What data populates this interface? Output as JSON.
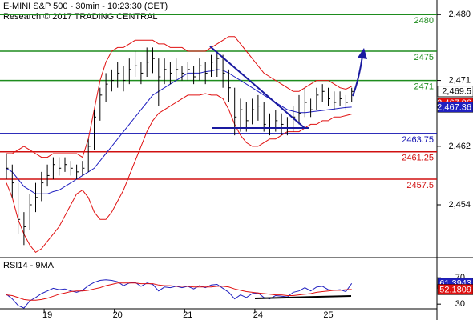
{
  "chart_data": [
    {
      "type": "ohlc",
      "title": "E-MINI S&P 500 - 30min - 10:23:30 (CET)",
      "subtitle": "Research © 2017 TRADING CENTRAL",
      "categories": [
        null,
        null,
        null,
        null,
        null,
        null,
        null,
        "19",
        null,
        null,
        null,
        null,
        null,
        null,
        null,
        null,
        null,
        null,
        null,
        "20",
        null,
        null,
        null,
        null,
        null,
        null,
        null,
        null,
        null,
        null,
        null,
        "21",
        null,
        null,
        null,
        null,
        null,
        null,
        null,
        null,
        null,
        null,
        null,
        "24",
        null,
        null,
        null,
        null,
        null,
        null,
        null,
        null,
        null,
        null,
        null,
        "25",
        null,
        null,
        null,
        null
      ],
      "high": [
        2461,
        2459.5,
        2457,
        2453,
        2455.5,
        2457,
        2458.5,
        2459.5,
        2460.5,
        2460.5,
        2460.5,
        2460,
        2459.5,
        2460,
        2463,
        2467,
        2470,
        2472,
        2472.5,
        2473.5,
        2473,
        2474,
        2475,
        2473.5,
        2475.5,
        2475.5,
        2474,
        2474,
        2473.5,
        2474,
        2473,
        2473.5,
        2473,
        2474,
        2473.5,
        2474.5,
        2475,
        2474.5,
        2472.5,
        2470,
        2468.5,
        2468,
        2468.5,
        2469,
        2468,
        2466.5,
        2467,
        2466.5,
        2466,
        2467.5,
        2469,
        2470,
        2468.5,
        2470,
        2470.5,
        2470,
        2469.5,
        2469.5,
        2469,
        2470
      ],
      "low": [
        2457.5,
        2455,
        2450,
        2448.5,
        2450.5,
        2453,
        2454.5,
        2456.5,
        2457.5,
        2458,
        2458.5,
        2458,
        2457.5,
        2458,
        2458.5,
        2461.5,
        2465.5,
        2468,
        2469.5,
        2470,
        2469.5,
        2470.5,
        2471.5,
        2470.5,
        2471.5,
        2472,
        2467.5,
        2470.5,
        2470.5,
        2471,
        2471,
        2471,
        2470.5,
        2471,
        2470.5,
        2471.5,
        2471.5,
        2470,
        2468,
        2463.5,
        2464,
        2464,
        2465,
        2465.5,
        2464,
        2463.5,
        2464,
        2463.5,
        2463.5,
        2464,
        2465,
        2466,
        2466,
        2467,
        2468,
        2467.5,
        2467,
        2467.5,
        2467,
        2468
      ],
      "close": [
        2459,
        2457,
        2452,
        2451,
        2454,
        2455,
        2457,
        2458,
        2459.5,
        2459,
        2459.5,
        2459,
        2458.5,
        2459,
        2462,
        2466,
        2469,
        2470.5,
        2471,
        2472,
        2471,
        2472.5,
        2473,
        2472,
        2473.5,
        2474,
        2471.5,
        2472.5,
        2472,
        2472.5,
        2472,
        2472.5,
        2471.5,
        2473,
        2472,
        2473.5,
        2474,
        2472,
        2470,
        2466,
        2467,
        2465.5,
        2467,
        2467.5,
        2465,
        2464.5,
        2465.5,
        2465,
        2464.5,
        2466,
        2466.5,
        2468,
        2467,
        2469,
        2469.5,
        2468.5,
        2468,
        2468.5,
        2468,
        2469.5
      ],
      "upper_band": [
        2461,
        2461,
        2461.5,
        2462,
        2461.5,
        2461,
        2460.5,
        2460.5,
        2461,
        2461,
        2461,
        2461,
        2461,
        2460.5,
        2463,
        2467,
        2471,
        2473.5,
        2475,
        2475.5,
        2475.5,
        2476,
        2476.5,
        2476.5,
        2476.5,
        2476.5,
        2476,
        2476,
        2475.5,
        2475.5,
        2475.5,
        2475,
        2475,
        2475,
        2475,
        2475.5,
        2476,
        2476.5,
        2477,
        2477,
        2476,
        2475,
        2474,
        2473,
        2472,
        2471.5,
        2471,
        2470.5,
        2470,
        2469.5,
        2469.5,
        2470,
        2470.5,
        2471,
        2471,
        2471,
        2470.5,
        2470,
        2469.8,
        2470.2
      ],
      "middle_band": [
        2459,
        2458.5,
        2457.5,
        2456.5,
        2456,
        2455.5,
        2455.5,
        2455.5,
        2455.8,
        2456,
        2456.5,
        2457,
        2457.5,
        2458,
        2458.5,
        2459,
        2460,
        2461,
        2462,
        2463,
        2464,
        2465,
        2466,
        2467,
        2468,
        2469,
        2469.5,
        2470,
        2470.5,
        2471,
        2471.5,
        2472,
        2472,
        2472,
        2472.2,
        2472.3,
        2472.5,
        2472.4,
        2472,
        2471.5,
        2471,
        2470.5,
        2470,
        2469.5,
        2469,
        2468.5,
        2468,
        2467.5,
        2467,
        2466.8,
        2466.6,
        2466.6,
        2466.7,
        2466.8,
        2466.9,
        2467,
        2467.1,
        2467.2,
        2467.3,
        2467.36
      ],
      "lower_band": [
        2457,
        2455,
        2452,
        2450,
        2448.5,
        2447.5,
        2448,
        2449,
        2450,
        2451,
        2452.5,
        2454,
        2455.5,
        2456,
        2455,
        2453,
        2452,
        2452,
        2453,
        2454.5,
        2456,
        2458,
        2460,
        2462,
        2464,
        2465.5,
        2466.5,
        2467,
        2467.5,
        2468,
        2468.5,
        2469,
        2469,
        2469,
        2469.2,
        2469,
        2469,
        2468.5,
        2467,
        2465,
        2463.5,
        2462.5,
        2462,
        2462,
        2462.5,
        2463,
        2463,
        2463.5,
        2464,
        2464,
        2464,
        2464.5,
        2465,
        2465,
        2465.5,
        2465.5,
        2466,
        2466,
        2466.2,
        2466.4
      ],
      "bar_color": "#000000",
      "band_color": "#e01010",
      "middle_color": "#2020c0",
      "levels": [
        {
          "value": 2480,
          "label": "2480",
          "color": "#1e8c1e"
        },
        {
          "value": 2475,
          "label": "2475",
          "color": "#1e8c1e"
        },
        {
          "value": 2471,
          "label": "2471",
          "color": "#1e8c1e"
        },
        {
          "value": 2463.75,
          "label": "2463.75",
          "color": "#1010b0"
        },
        {
          "value": 2461.25,
          "label": "2461.25",
          "color": "#d01010"
        },
        {
          "value": 2457.5,
          "label": "2457.5",
          "color": "#d01010"
        }
      ],
      "ylim": [
        2447,
        2482
      ],
      "yticks": [
        {
          "value": 2480,
          "label": "2,480"
        },
        {
          "value": 2471,
          "label": "2,471"
        },
        {
          "value": 2462,
          "label": "2,462"
        },
        {
          "value": 2454,
          "label": "2,454"
        }
      ],
      "markers": [
        {
          "value": 2469.5,
          "label": "2,469.5",
          "color": "#ffffff"
        },
        {
          "value": 2467.96,
          "label": "2,467.96",
          "color": "#e01010"
        },
        {
          "value": 2467.36,
          "label": "2,467.36",
          "color": "#2020c0"
        }
      ]
    },
    {
      "type": "line",
      "title": "RSI14 - 9MA",
      "series": [
        {
          "color": "#2020c0",
          "values": [
            45,
            38,
            28,
            24,
            35,
            40,
            46,
            50,
            54,
            52,
            53,
            50,
            48,
            51,
            58,
            63,
            66,
            67,
            66,
            64,
            58,
            62,
            63,
            57,
            62,
            60,
            50,
            56,
            55,
            57,
            55,
            57,
            53,
            58,
            55,
            59,
            60,
            54,
            48,
            38,
            44,
            40,
            46,
            47,
            40,
            38,
            43,
            42,
            41,
            48,
            50,
            55,
            50,
            56,
            57,
            52,
            51,
            52,
            49,
            61.39
          ]
        },
        {
          "color": "#e01010",
          "values": [
            44,
            43,
            40,
            37,
            36,
            36,
            37,
            39,
            42,
            45,
            47,
            49,
            50,
            50,
            51,
            53,
            55,
            58,
            60,
            62,
            62,
            62,
            62,
            61,
            61,
            61,
            59,
            58,
            58,
            57,
            57,
            57,
            56,
            56,
            56,
            56,
            57,
            57,
            56,
            53,
            51,
            49,
            48,
            47,
            46,
            45,
            44,
            44,
            43,
            43,
            44,
            45,
            46,
            48,
            49,
            50,
            51,
            51,
            52,
            52.18
          ]
        }
      ],
      "ylim": [
        12,
        97
      ],
      "yticks": [
        70,
        30
      ],
      "markers": [
        {
          "value": 61.3943,
          "label": "61.3943",
          "color": "#2020c0"
        },
        {
          "value": 52.1809,
          "label": "52.1809",
          "color": "#e01010"
        }
      ]
    }
  ]
}
